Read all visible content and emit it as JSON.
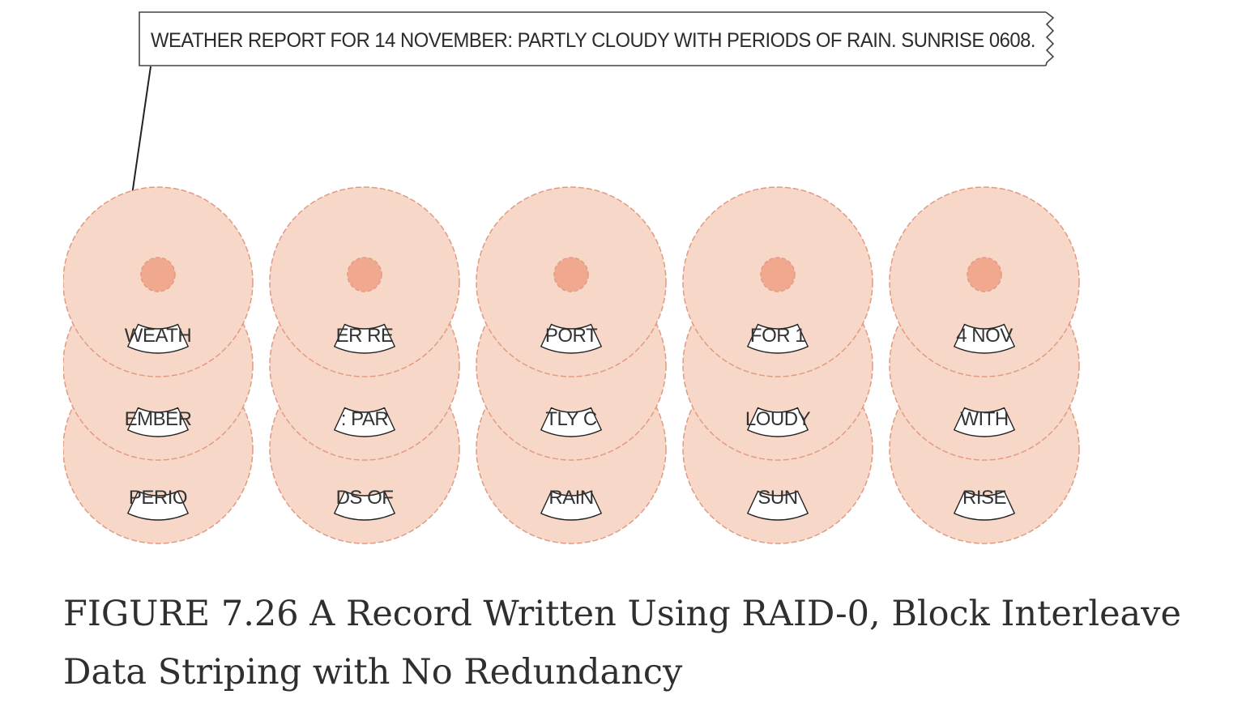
{
  "record": {
    "text": "WEATHER REPORT FOR 14 NOVEMBER: PARTLY CLOUDY WITH PERIODS OF RAIN. SUNRISE 0608."
  },
  "disks": [
    {
      "blocks": [
        "WEATH",
        "EMBER",
        "PERIO"
      ]
    },
    {
      "blocks": [
        "ER RE",
        ": PAR",
        "DS OF"
      ]
    },
    {
      "blocks": [
        "PORT",
        "TLY C",
        "RAIN"
      ]
    },
    {
      "blocks": [
        "FOR 1",
        "LOUDY",
        "SUN"
      ]
    },
    {
      "blocks": [
        "4 NOV",
        "WITH",
        "RISE"
      ]
    }
  ],
  "colors": {
    "platter_fill": "#f7d8c8",
    "platter_edge": "#e29a82",
    "hub_fill": "#f0a98f",
    "track_fill": "#ffffff",
    "line": "#222222"
  },
  "caption": {
    "text": "FIGURE 7.26 A Record Written Using RAID-0, Block Interleave Data Striping with No Redundancy"
  }
}
